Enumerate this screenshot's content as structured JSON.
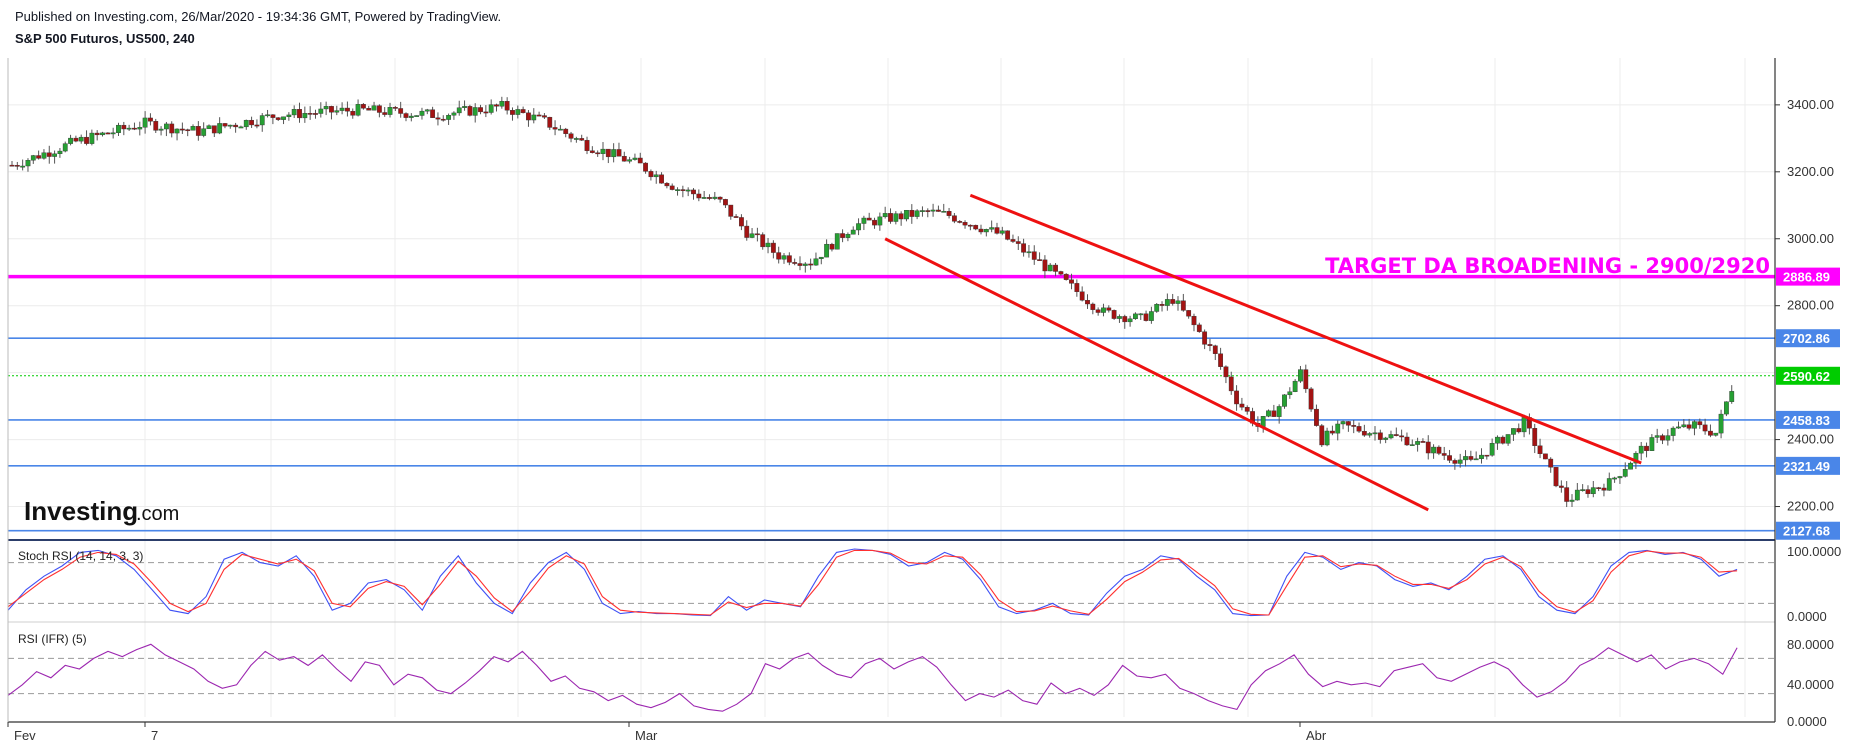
{
  "header": {
    "published": "Published on Investing.com, 26/Mar/2020 - 19:34:36 GMT, Powered by TradingView.",
    "symbol": "S&P 500 Futuros, US500, 240"
  },
  "logo": {
    "brand": "Investing",
    "suffix": ".com"
  },
  "annotation": {
    "text": "TARGET DA BROADENING - 2900/2920",
    "color": "#ff00ff"
  },
  "colors": {
    "up": "#26a033",
    "down": "#a31313",
    "grid": "#ececec",
    "hline": "#4a86e8",
    "magenta": "#ff00ff",
    "last": "#00cc00",
    "stoch_k": "#3f51f5",
    "stoch_d": "#ff3030",
    "rsi": "#9c27b0"
  },
  "chart_data": [
    {
      "type": "candlestick",
      "title": "S&P 500 Futuros, US500, 240",
      "x_axis": {
        "ticks": [
          "Fev",
          "7",
          "Mar",
          "Abr"
        ]
      },
      "y_axis": {
        "ticks": [
          "3400.00",
          "3200.00",
          "3000.00",
          "2800.00",
          "2400.00",
          "2200.00"
        ],
        "ylim": [
          2100,
          3540
        ]
      },
      "anchors": [
        [
          0,
          3220
        ],
        [
          12,
          3290
        ],
        [
          25,
          3345
        ],
        [
          35,
          3320
        ],
        [
          50,
          3370
        ],
        [
          65,
          3385
        ],
        [
          80,
          3370
        ],
        [
          92,
          3395
        ],
        [
          100,
          3350
        ],
        [
          108,
          3280
        ],
        [
          118,
          3220
        ],
        [
          125,
          3150
        ],
        [
          133,
          3110
        ],
        [
          138,
          3020
        ],
        [
          144,
          2950
        ],
        [
          150,
          2930
        ],
        [
          158,
          3040
        ],
        [
          164,
          3060
        ],
        [
          172,
          3080
        ],
        [
          176,
          3070
        ],
        [
          186,
          3010
        ],
        [
          193,
          2930
        ],
        [
          205,
          2780
        ],
        [
          212,
          2760
        ],
        [
          218,
          2820
        ],
        [
          223,
          2720
        ],
        [
          226,
          2650
        ],
        [
          230,
          2520
        ],
        [
          234,
          2440
        ],
        [
          238,
          2500
        ],
        [
          242,
          2600
        ],
        [
          246,
          2400
        ],
        [
          250,
          2440
        ],
        [
          256,
          2420
        ],
        [
          262,
          2400
        ],
        [
          268,
          2360
        ],
        [
          274,
          2330
        ],
        [
          278,
          2380
        ],
        [
          284,
          2450
        ],
        [
          288,
          2330
        ],
        [
          292,
          2220
        ],
        [
          296,
          2250
        ],
        [
          300,
          2270
        ],
        [
          306,
          2370
        ],
        [
          312,
          2430
        ],
        [
          316,
          2440
        ],
        [
          320,
          2420
        ],
        [
          324,
          2600
        ]
      ],
      "horizontal_levels": [
        {
          "value": "2886.89",
          "price": 2886.89,
          "style": "magenta"
        },
        {
          "value": "2702.86",
          "price": 2702.86,
          "style": "blue"
        },
        {
          "value": "2590.62",
          "price": 2590.62,
          "style": "last"
        },
        {
          "value": "2458.83",
          "price": 2458.83,
          "style": "blue"
        },
        {
          "value": "2321.49",
          "price": 2321.49,
          "style": "blue"
        },
        {
          "value": "2127.68",
          "price": 2127.68,
          "style": "blue"
        }
      ],
      "trendlines": [
        {
          "from": [
            180,
            3130
          ],
          "to": [
            306,
            2330
          ]
        },
        {
          "from": [
            164,
            3000
          ],
          "to": [
            266,
            2190
          ]
        }
      ]
    },
    {
      "type": "line",
      "title": "Stoch RSI (14, 14, 3, 3)",
      "y_axis": {
        "ticks": [
          "100.0000",
          "0.0000"
        ],
        "ylim": [
          0,
          100
        ],
        "levels": [
          80,
          20
        ]
      },
      "series": [
        {
          "values": [
            10,
            40,
            60,
            75,
            95,
            98,
            90,
            70,
            40,
            10,
            5,
            30,
            85,
            95,
            80,
            75,
            90,
            60,
            10,
            20,
            50,
            55,
            40,
            10,
            60,
            90,
            50,
            20,
            5,
            50,
            80,
            95,
            70,
            20,
            5,
            8,
            5,
            5,
            3,
            2,
            30,
            10,
            25,
            20,
            15,
            60,
            95,
            100,
            98,
            92,
            75,
            80,
            95,
            85,
            55,
            15,
            5,
            10,
            20,
            5,
            3,
            35,
            60,
            70,
            90,
            85,
            60,
            40,
            5,
            2,
            3,
            60,
            95,
            88,
            70,
            80,
            75,
            55,
            45,
            50,
            40,
            60,
            85,
            90,
            70,
            30,
            10,
            5,
            30,
            75,
            95,
            98,
            92,
            95,
            85,
            60,
            70
          ]
        },
        {
          "values": [
            15,
            35,
            55,
            70,
            88,
            95,
            92,
            78,
            50,
            20,
            8,
            20,
            70,
            92,
            85,
            78,
            85,
            68,
            20,
            15,
            42,
            52,
            45,
            18,
            48,
            82,
            60,
            28,
            8,
            38,
            72,
            90,
            78,
            30,
            10,
            7,
            6,
            5,
            4,
            3,
            22,
            14,
            20,
            20,
            16,
            48,
            88,
            98,
            98,
            94,
            80,
            78,
            90,
            88,
            62,
            25,
            8,
            9,
            16,
            9,
            4,
            26,
            52,
            66,
            84,
            86,
            66,
            46,
            12,
            4,
            3,
            46,
            88,
            90,
            74,
            78,
            76,
            60,
            48,
            48,
            42,
            55,
            78,
            88,
            74,
            38,
            15,
            7,
            24,
            66,
            90,
            97,
            94,
            94,
            88,
            66,
            68
          ]
        }
      ]
    },
    {
      "type": "line",
      "title": "RSI (IFR) (5)",
      "y_axis": {
        "ticks": [
          "80.0000",
          "40.0000",
          "0.0000"
        ],
        "ylim": [
          0,
          100
        ],
        "levels": [
          70,
          30
        ]
      },
      "series": [
        {
          "values": [
            28,
            40,
            55,
            48,
            62,
            58,
            70,
            78,
            72,
            80,
            86,
            74,
            66,
            58,
            44,
            36,
            40,
            62,
            78,
            68,
            72,
            62,
            74,
            58,
            44,
            66,
            62,
            40,
            52,
            48,
            34,
            30,
            42,
            56,
            72,
            66,
            78,
            62,
            44,
            50,
            36,
            32,
            22,
            28,
            18,
            14,
            20,
            30,
            16,
            12,
            10,
            18,
            30,
            64,
            58,
            70,
            76,
            62,
            52,
            48,
            64,
            70,
            58,
            66,
            72,
            60,
            40,
            22,
            30,
            26,
            34,
            22,
            18,
            42,
            30,
            36,
            28,
            40,
            62,
            50,
            48,
            52,
            36,
            30,
            22,
            16,
            12,
            40,
            56,
            64,
            74,
            52,
            38,
            44,
            40,
            42,
            38,
            56,
            60,
            64,
            48,
            44,
            52,
            60,
            66,
            58,
            40,
            26,
            32,
            44,
            62,
            70,
            82,
            74,
            66,
            74,
            58,
            66,
            70,
            64,
            52,
            82
          ]
        }
      ]
    }
  ]
}
